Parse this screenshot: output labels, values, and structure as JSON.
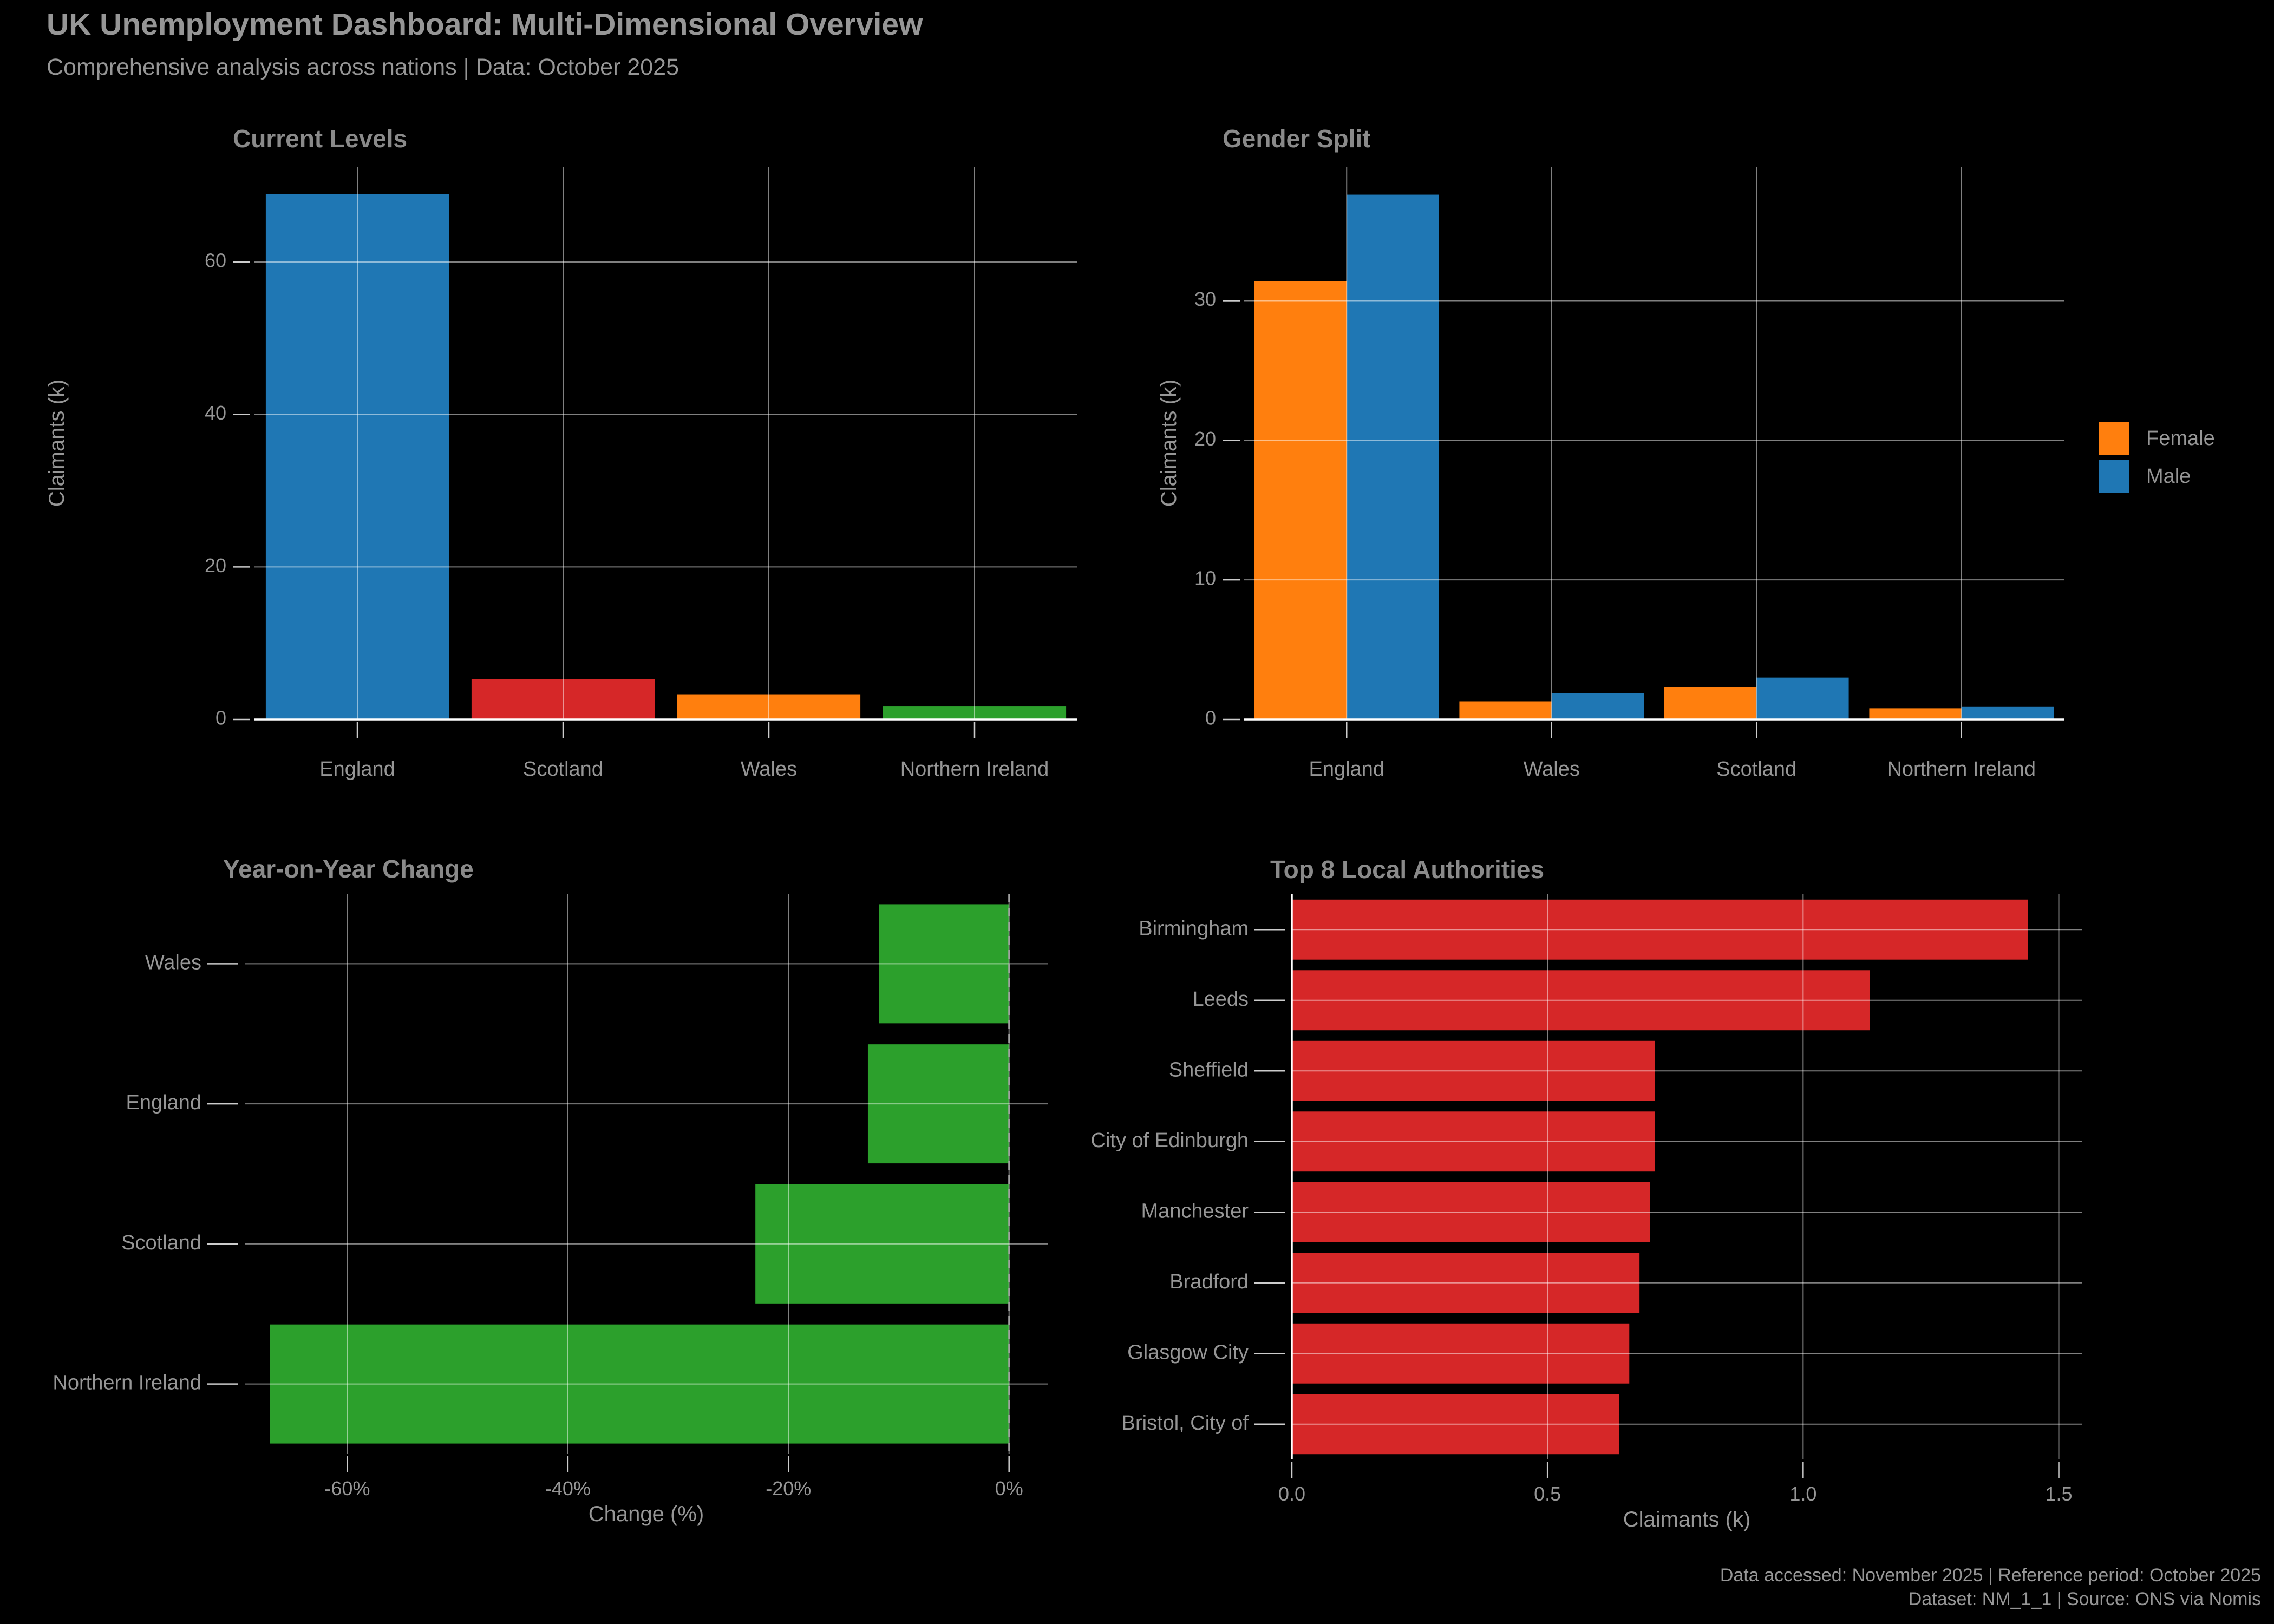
{
  "header": {
    "title": "UK Unemployment Dashboard: Multi-Dimensional Overview",
    "subtitle": "Comprehensive analysis across nations | Data: October 2025"
  },
  "footer": {
    "line1": "Data accessed: November 2025 | Reference period: October 2025",
    "line2": "Dataset: NM_1_1 | Source: ONS via Nomis"
  },
  "colors": {
    "background": "#000000",
    "text": "#969696",
    "title_text": "#8a8a8a",
    "grid": "#ffffff",
    "tick": "#cccccc",
    "zero_dash": "#a0a0a0",
    "blue": "#1f77b4",
    "orange": "#ff7f0e",
    "red": "#d62728",
    "green": "#2ca02c"
  },
  "legend": {
    "items": [
      {
        "label": "Female",
        "color": "#ff7f0e"
      },
      {
        "label": "Male",
        "color": "#1f77b4"
      }
    ]
  },
  "chart_data": [
    {
      "type": "bar",
      "title": "Current Levels",
      "ylabel": "Claimants (k)",
      "categories": [
        "England",
        "Scotland",
        "Wales",
        "Northern Ireland"
      ],
      "values": [
        68.9,
        5.3,
        3.3,
        1.7
      ],
      "bar_colors": [
        "#1f77b4",
        "#d62728",
        "#ff7f0e",
        "#2ca02c"
      ],
      "yticks": [
        0,
        20,
        40,
        60
      ],
      "ytick_labels": [
        "0",
        "20",
        "40",
        "60"
      ],
      "ylim": [
        0,
        72.5
      ],
      "grid": true
    },
    {
      "type": "grouped_bar",
      "title": "Gender Split",
      "ylabel": "Claimants (k)",
      "categories": [
        "England",
        "Wales",
        "Scotland",
        "Northern Ireland"
      ],
      "series": [
        {
          "name": "Female",
          "color": "#ff7f0e",
          "values": [
            31.4,
            1.3,
            2.3,
            0.8
          ]
        },
        {
          "name": "Male",
          "color": "#1f77b4",
          "values": [
            37.6,
            1.9,
            3.0,
            0.9
          ]
        }
      ],
      "yticks": [
        0,
        10,
        20,
        30
      ],
      "ytick_labels": [
        "0",
        "10",
        "20",
        "30"
      ],
      "ylim": [
        0,
        39.6
      ],
      "legend_position": "right",
      "grid": true
    },
    {
      "type": "barh",
      "title": "Year-on-Year Change",
      "xlabel": "Change (%)",
      "categories": [
        "Wales",
        "England",
        "Scotland",
        "Northern Ireland"
      ],
      "values": [
        -11.8,
        -12.8,
        -23.0,
        -67.0
      ],
      "color": "#2ca02c",
      "xticks": [
        -60,
        -40,
        -20,
        0
      ],
      "xtick_labels": [
        "-60%",
        "-40%",
        "-20%",
        "0%"
      ],
      "xlim": [
        -69.3,
        3.5
      ],
      "zero_line": "dashed",
      "grid": true
    },
    {
      "type": "barh",
      "title": "Top 8 Local Authorities",
      "xlabel": "Claimants (k)",
      "categories": [
        "Birmingham",
        "Leeds",
        "Sheffield",
        "City of Edinburgh",
        "Manchester",
        "Bradford",
        "Glasgow City",
        "Bristol, City of"
      ],
      "values": [
        1.44,
        1.13,
        0.71,
        0.71,
        0.7,
        0.68,
        0.66,
        0.64
      ],
      "color": "#d62728",
      "xticks": [
        0.0,
        0.5,
        1.0,
        1.5
      ],
      "xtick_labels": [
        "0.0",
        "0.5",
        "1.0",
        "1.5"
      ],
      "xlim": [
        0,
        1.545
      ],
      "grid": true
    }
  ]
}
